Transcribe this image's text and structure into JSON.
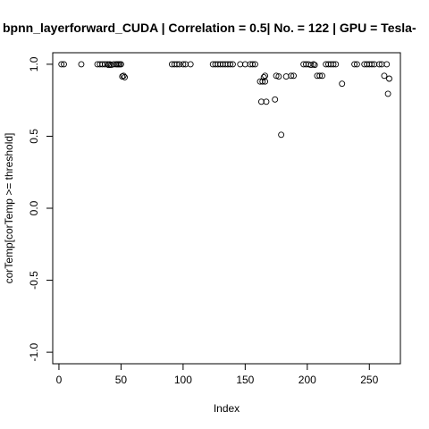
{
  "chart_data": {
    "type": "scatter",
    "title": "bpnn_layerforward_CUDA | Correlation = 0.5| No. = 122 | GPU = Tesla-",
    "xlabel": "Index",
    "ylabel": "corTemp[corTemp >= threshold]",
    "xlim": [
      -5,
      275
    ],
    "ylim": [
      -1.08,
      1.08
    ],
    "x_ticks": [
      0,
      50,
      100,
      150,
      200,
      250
    ],
    "y_ticks": [
      -1.0,
      -0.5,
      0.0,
      0.5,
      1.0
    ],
    "x_tick_labels": [
      "0",
      "50",
      "100",
      "150",
      "200",
      "250"
    ],
    "y_tick_labels": [
      "-1.0",
      "-0.5",
      "0.0",
      "0.5",
      "1.0"
    ],
    "grid": false,
    "marker": "open-circle",
    "points": [
      [
        2,
        1.0
      ],
      [
        4,
        1.0
      ],
      [
        18,
        1.0
      ],
      [
        31,
        1.0
      ],
      [
        33,
        1.0
      ],
      [
        35,
        1.0
      ],
      [
        37,
        1.0
      ],
      [
        39,
        1.0
      ],
      [
        40,
        0.995
      ],
      [
        41,
        1.0
      ],
      [
        42,
        0.995
      ],
      [
        44,
        1.0
      ],
      [
        46,
        1.0
      ],
      [
        47,
        1.0
      ],
      [
        48,
        1.0
      ],
      [
        49,
        1.0
      ],
      [
        50,
        1.0
      ],
      [
        51,
        0.915
      ],
      [
        52,
        0.92
      ],
      [
        53,
        0.91
      ],
      [
        91,
        1.0
      ],
      [
        93,
        1.0
      ],
      [
        95,
        1.0
      ],
      [
        97,
        1.0
      ],
      [
        100,
        1.0
      ],
      [
        102,
        1.0
      ],
      [
        106,
        1.0
      ],
      [
        124,
        1.0
      ],
      [
        126,
        1.0
      ],
      [
        128,
        1.0
      ],
      [
        130,
        1.0
      ],
      [
        132,
        1.0
      ],
      [
        134,
        1.0
      ],
      [
        136,
        1.0
      ],
      [
        138,
        1.0
      ],
      [
        140,
        1.0
      ],
      [
        146,
        1.0
      ],
      [
        150,
        1.0
      ],
      [
        154,
        1.0
      ],
      [
        156,
        1.0
      ],
      [
        158,
        1.0
      ],
      [
        162,
        0.88
      ],
      [
        163,
        0.74
      ],
      [
        164,
        0.88
      ],
      [
        165,
        0.91
      ],
      [
        166,
        0.88
      ],
      [
        167,
        0.74
      ],
      [
        166,
        0.92
      ],
      [
        174,
        0.755
      ],
      [
        175,
        0.92
      ],
      [
        177,
        0.915
      ],
      [
        179,
        0.51
      ],
      [
        183,
        0.915
      ],
      [
        187,
        0.92
      ],
      [
        189,
        0.92
      ],
      [
        197,
        1.0
      ],
      [
        199,
        1.0
      ],
      [
        201,
        1.0
      ],
      [
        203,
        0.995
      ],
      [
        205,
        1.0
      ],
      [
        206,
        0.995
      ],
      [
        208,
        0.92
      ],
      [
        210,
        0.92
      ],
      [
        212,
        0.92
      ],
      [
        215,
        1.0
      ],
      [
        217,
        1.0
      ],
      [
        219,
        1.0
      ],
      [
        221,
        1.0
      ],
      [
        223,
        1.0
      ],
      [
        228,
        0.865
      ],
      [
        238,
        1.0
      ],
      [
        240,
        1.0
      ],
      [
        246,
        1.0
      ],
      [
        248,
        1.0
      ],
      [
        250,
        1.0
      ],
      [
        252,
        1.0
      ],
      [
        254,
        1.0
      ],
      [
        258,
        1.0
      ],
      [
        260,
        1.0
      ],
      [
        262,
        0.92
      ],
      [
        264,
        1.0
      ],
      [
        265,
        0.795
      ],
      [
        266,
        0.9
      ]
    ]
  }
}
